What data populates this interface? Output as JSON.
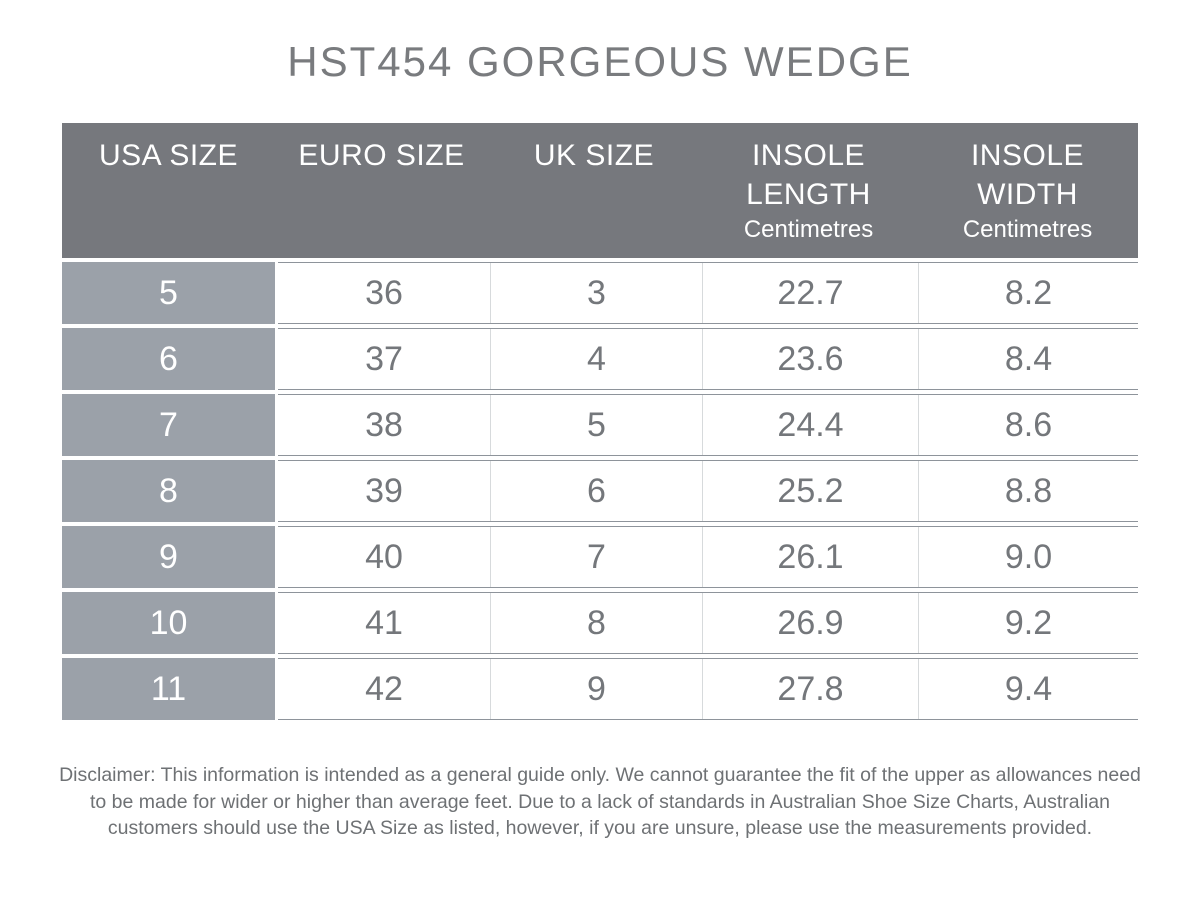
{
  "title": "HST454 GORGEOUS WEDGE",
  "table": {
    "headers": [
      {
        "name": "usa-size",
        "lines": [
          "USA SIZE"
        ],
        "sub": ""
      },
      {
        "name": "euro-size",
        "lines": [
          "EURO SIZE"
        ],
        "sub": ""
      },
      {
        "name": "uk-size",
        "lines": [
          "UK SIZE"
        ],
        "sub": ""
      },
      {
        "name": "insole-length",
        "lines": [
          "INSOLE",
          "LENGTH"
        ],
        "sub": "Centimetres"
      },
      {
        "name": "insole-width",
        "lines": [
          "INSOLE",
          "WIDTH"
        ],
        "sub": "Centimetres"
      }
    ],
    "rows": [
      [
        "5",
        "36",
        "3",
        "22.7",
        "8.2"
      ],
      [
        "6",
        "37",
        "4",
        "23.6",
        "8.4"
      ],
      [
        "7",
        "38",
        "5",
        "24.4",
        "8.6"
      ],
      [
        "8",
        "39",
        "6",
        "25.2",
        "8.8"
      ],
      [
        "9",
        "40",
        "7",
        "26.1",
        "9.0"
      ],
      [
        "10",
        "41",
        "8",
        "26.9",
        "9.2"
      ],
      [
        "11",
        "42",
        "9",
        "27.8",
        "9.4"
      ]
    ]
  },
  "disclaimer": "Disclaimer: This information is intended as a general guide only. We cannot guarantee the fit of the upper as allowances need to be made for wider or higher than average feet. Due to a lack of standards in Australian Shoe Size Charts, Australian customers should use the USA Size as listed, however, if you are unsure, please use the measurements provided.",
  "colors": {
    "header_bg": "#76787d",
    "row_label_bg": "#9ba1a9",
    "title_text": "#797b7e",
    "cell_text": "#74777b",
    "header_text": "#ffffff",
    "border_dark": "#8e949b",
    "border_light": "#d7dadc",
    "disclaimer_text": "#6e7174"
  }
}
